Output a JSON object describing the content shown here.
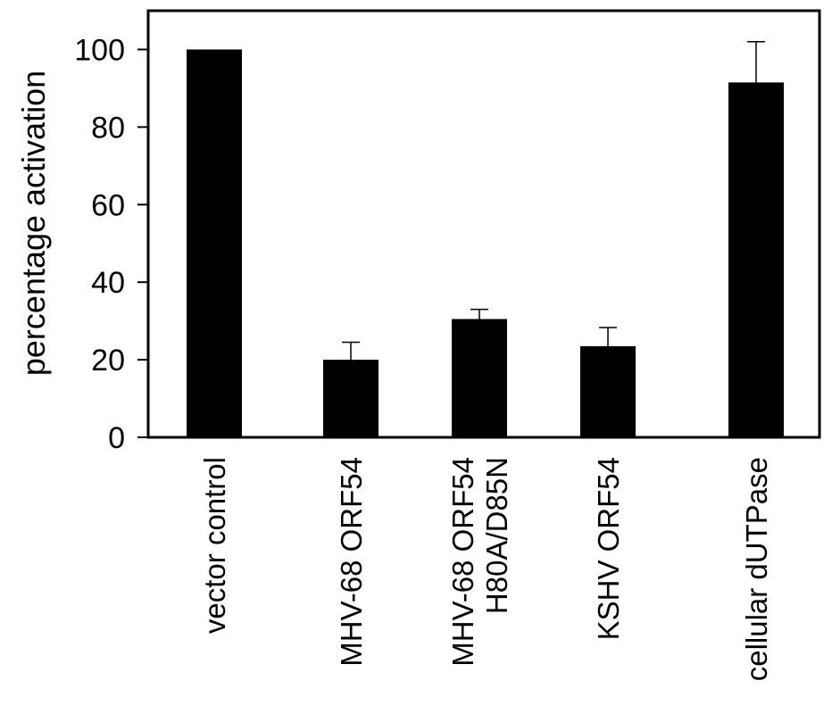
{
  "chart_data": {
    "type": "bar",
    "title": "",
    "xlabel": "",
    "ylabel": "percentage activation",
    "ylim": [
      0,
      110
    ],
    "yticks": [
      0,
      20,
      40,
      60,
      80,
      100
    ],
    "grid": false,
    "legend": "none",
    "categories": [
      [
        "vector control"
      ],
      [
        "MHV-68  ORF54"
      ],
      [
        "MHV-68  ORF54",
        "H80A/D85N"
      ],
      [
        "KSHV  ORF54"
      ],
      [
        "cellular dUTPase"
      ]
    ],
    "values": [
      100,
      20,
      30.5,
      23.5,
      91.5
    ],
    "error_upper": [
      0,
      4.5,
      2.5,
      4.8,
      10.5
    ],
    "colors": {
      "bar": "#000000",
      "axis": "#000000",
      "background": "#ffffff"
    }
  }
}
